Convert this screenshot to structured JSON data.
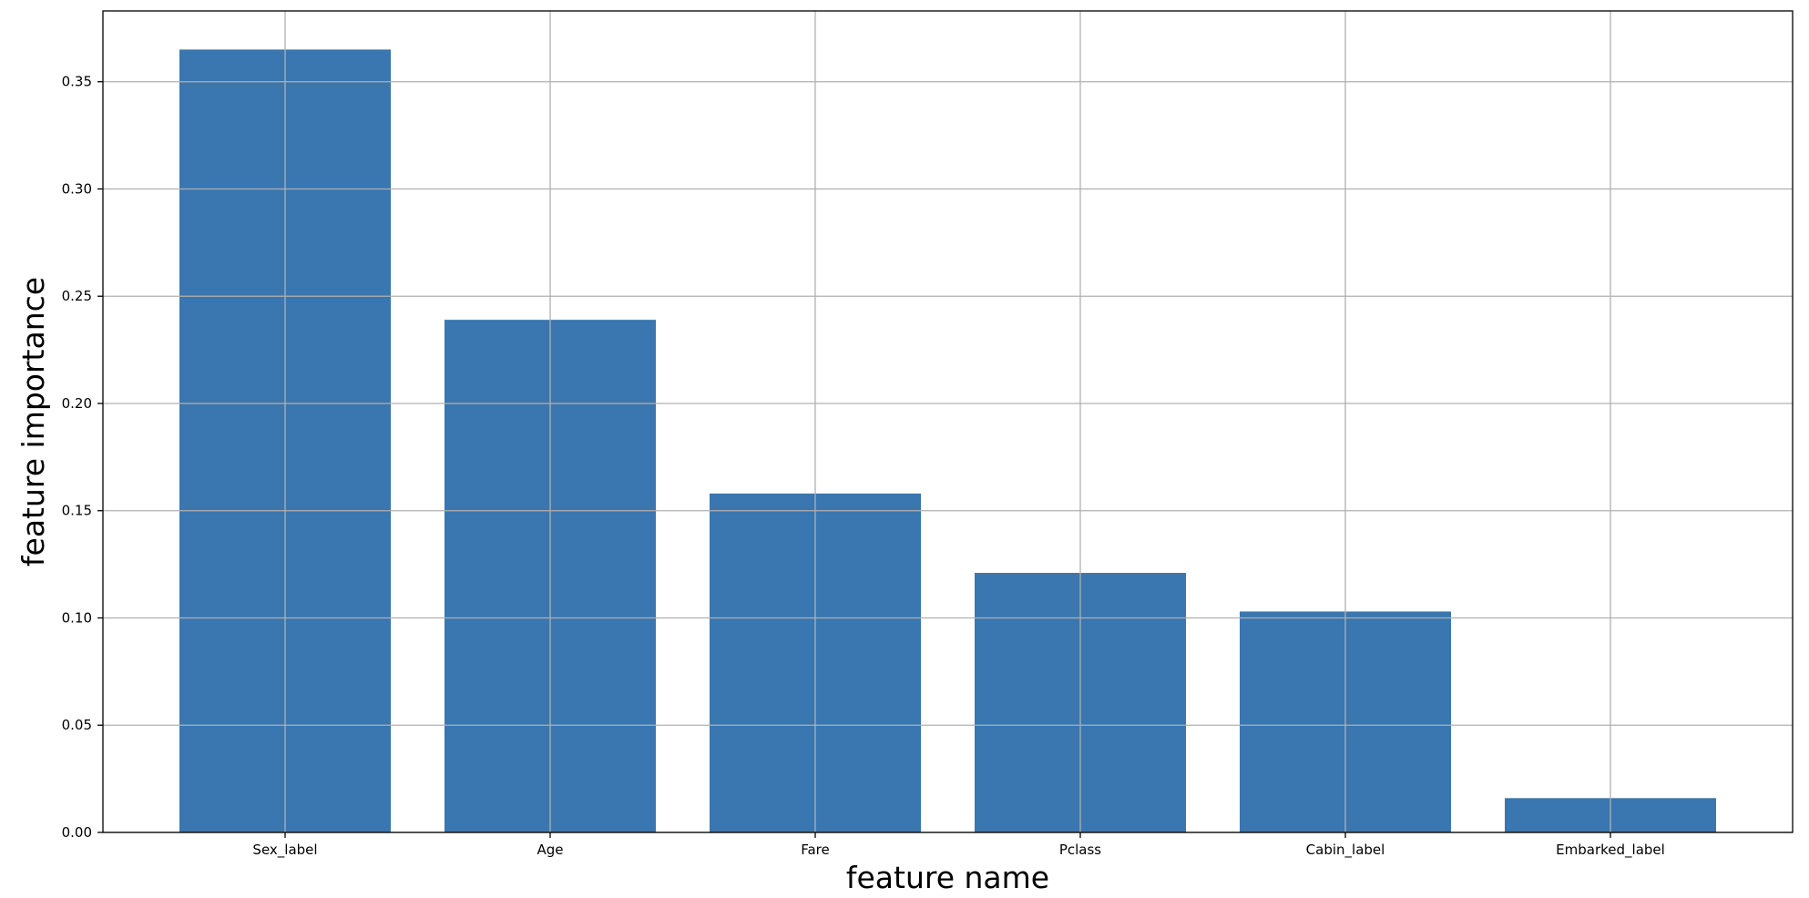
{
  "chart_data": {
    "type": "bar",
    "categories": [
      "Sex_label",
      "Age",
      "Fare",
      "Pclass",
      "Cabin_label",
      "Embarked_label"
    ],
    "values": [
      0.365,
      0.239,
      0.158,
      0.121,
      0.103,
      0.016
    ],
    "title": "",
    "xlabel": "feature name",
    "ylabel": "feature importance",
    "ylim": [
      0,
      0.383
    ],
    "yticks": [
      0.0,
      0.05,
      0.1,
      0.15,
      0.2,
      0.25,
      0.3,
      0.35
    ],
    "ytick_labels": [
      "0.00",
      "0.05",
      "0.10",
      "0.15",
      "0.20",
      "0.25",
      "0.30",
      "0.35"
    ],
    "grid": true,
    "bar_color": "#3a76af",
    "grid_color": "#b0b0b0"
  }
}
